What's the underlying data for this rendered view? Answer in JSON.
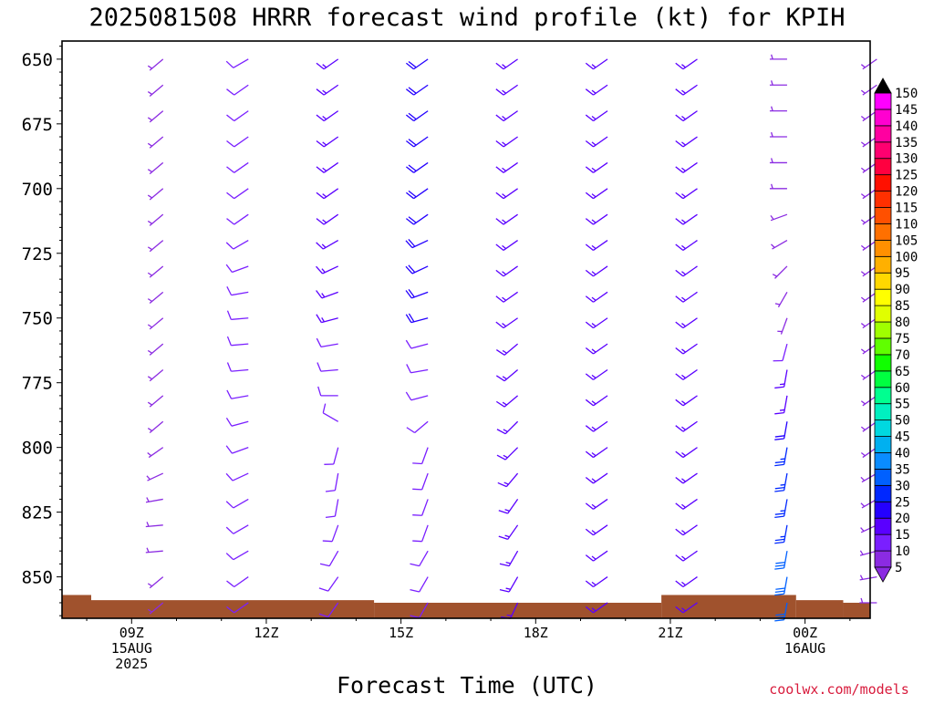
{
  "title": "2025081508 HRRR forecast wind profile (kt) for KPIH",
  "xlabel": "Forecast Time (UTC)",
  "credit": "coolwx.com/models",
  "chart_data": {
    "type": "wind-barb-profile",
    "title": "2025081508 HRRR forecast wind profile (kt) for KPIH",
    "xlabel": "Forecast Time (UTC)",
    "ylabel": "",
    "units": "kt",
    "x_range_hours_from_09Z": [
      -1.55,
      16.45
    ],
    "y_range_hpa": [
      643,
      866
    ],
    "x_ticks": [
      {
        "hour": 0,
        "label": "09Z",
        "sub": [
          "15AUG",
          "2025"
        ]
      },
      {
        "hour": 3,
        "label": "12Z",
        "sub": []
      },
      {
        "hour": 6,
        "label": "15Z",
        "sub": []
      },
      {
        "hour": 9,
        "label": "18Z",
        "sub": []
      },
      {
        "hour": 12,
        "label": "21Z",
        "sub": []
      },
      {
        "hour": 15,
        "label": "00Z",
        "sub": [
          "16AUG"
        ]
      }
    ],
    "y_ticks": [
      650,
      675,
      700,
      725,
      750,
      775,
      800,
      825,
      850
    ],
    "pressure_levels": [
      650,
      660,
      670,
      680,
      690,
      700,
      710,
      720,
      730,
      740,
      750,
      760,
      770,
      780,
      790,
      800,
      810,
      820,
      830,
      840,
      850,
      860
    ],
    "columns": [
      {
        "hour": 0.7,
        "dir": [
          230,
          230,
          230,
          230,
          230,
          230,
          230,
          230,
          230,
          230,
          230,
          230,
          230,
          230,
          230,
          235,
          245,
          260,
          265,
          265,
          230,
          230
        ],
        "spd": [
          8,
          8,
          8,
          8,
          8,
          8,
          8,
          8,
          8,
          8,
          8,
          8,
          8,
          8,
          8,
          8,
          8,
          8,
          8,
          8,
          8,
          8
        ]
      },
      {
        "hour": 2.6,
        "dir": [
          240,
          235,
          235,
          235,
          235,
          235,
          235,
          240,
          250,
          260,
          265,
          265,
          265,
          260,
          255,
          250,
          245,
          240,
          240,
          240,
          235,
          235
        ],
        "spd": [
          10,
          10,
          10,
          10,
          10,
          10,
          10,
          10,
          10,
          10,
          10,
          10,
          10,
          10,
          10,
          10,
          10,
          10,
          10,
          10,
          10,
          10
        ]
      },
      {
        "hour": 4.6,
        "dir": [
          235,
          235,
          235,
          235,
          235,
          235,
          235,
          240,
          245,
          250,
          255,
          260,
          265,
          270,
          300,
          195,
          190,
          190,
          200,
          210,
          215,
          215
        ],
        "spd": [
          15,
          15,
          15,
          15,
          15,
          15,
          15,
          15,
          15,
          15,
          15,
          12,
          12,
          12,
          12,
          12,
          12,
          12,
          12,
          12,
          12,
          12
        ]
      },
      {
        "hour": 6.6,
        "dir": [
          235,
          235,
          235,
          235,
          235,
          235,
          235,
          245,
          245,
          250,
          255,
          255,
          260,
          255,
          230,
          200,
          200,
          200,
          200,
          210,
          210,
          210
        ],
        "spd": [
          20,
          20,
          20,
          20,
          20,
          20,
          20,
          20,
          20,
          20,
          20,
          12,
          12,
          12,
          12,
          12,
          12,
          12,
          12,
          12,
          12,
          12
        ]
      },
      {
        "hour": 8.6,
        "dir": [
          235,
          235,
          235,
          235,
          235,
          235,
          235,
          235,
          235,
          235,
          235,
          230,
          230,
          230,
          225,
          225,
          220,
          215,
          215,
          210,
          210,
          205
        ],
        "spd": [
          18,
          18,
          18,
          18,
          18,
          18,
          18,
          18,
          18,
          18,
          18,
          15,
          15,
          15,
          15,
          15,
          15,
          15,
          15,
          15,
          15,
          15
        ]
      },
      {
        "hour": 10.6,
        "dir": [
          235,
          235,
          235,
          235,
          235,
          235,
          235,
          235,
          235,
          235,
          235,
          235,
          235,
          235,
          235,
          235,
          235,
          235,
          235,
          235,
          235,
          235
        ],
        "spd": [
          15,
          15,
          15,
          15,
          15,
          15,
          15,
          15,
          15,
          15,
          15,
          15,
          15,
          15,
          15,
          15,
          15,
          15,
          15,
          15,
          15,
          15
        ]
      },
      {
        "hour": 12.6,
        "dir": [
          235,
          235,
          235,
          235,
          235,
          235,
          235,
          235,
          235,
          235,
          235,
          235,
          235,
          235,
          235,
          235,
          235,
          235,
          235,
          235,
          235,
          235
        ],
        "spd": [
          15,
          15,
          15,
          15,
          15,
          15,
          15,
          15,
          15,
          15,
          15,
          15,
          15,
          15,
          15,
          15,
          15,
          15,
          15,
          15,
          15,
          15
        ]
      },
      {
        "hour": 14.6,
        "dir": [
          270,
          270,
          270,
          270,
          270,
          270,
          250,
          240,
          225,
          210,
          200,
          195,
          190,
          190,
          190,
          190,
          190,
          190,
          190,
          190,
          190,
          190
        ],
        "spd": [
          8,
          8,
          8,
          8,
          8,
          8,
          8,
          8,
          8,
          8,
          8,
          12,
          15,
          18,
          22,
          25,
          25,
          25,
          28,
          30,
          30,
          30
        ]
      },
      {
        "hour": 16.6,
        "dir": [
          235,
          235,
          235,
          235,
          235,
          235,
          235,
          235,
          235,
          235,
          235,
          235,
          235,
          235,
          235,
          235,
          240,
          240,
          245,
          255,
          260,
          270
        ],
        "spd": [
          8,
          8,
          8,
          8,
          8,
          8,
          8,
          8,
          8,
          8,
          8,
          8,
          8,
          8,
          8,
          8,
          8,
          8,
          8,
          8,
          8,
          8
        ]
      }
    ],
    "terrain": [
      {
        "h0": -1.55,
        "h1": -0.9,
        "p": 857
      },
      {
        "h0": -0.9,
        "h1": 5.4,
        "p": 859
      },
      {
        "h0": 5.4,
        "h1": 11.8,
        "p": 860
      },
      {
        "h0": 11.8,
        "h1": 14.8,
        "p": 857
      },
      {
        "h0": 14.8,
        "h1": 15.85,
        "p": 859
      },
      {
        "h0": 15.85,
        "h1": 16.45,
        "p": 860
      }
    ],
    "terrain_color": "#a0522d",
    "colorbar": {
      "labels": [
        5,
        10,
        15,
        20,
        25,
        30,
        35,
        40,
        45,
        50,
        55,
        60,
        65,
        70,
        75,
        80,
        85,
        90,
        95,
        100,
        105,
        110,
        115,
        120,
        125,
        130,
        135,
        140,
        145,
        150
      ],
      "colors": [
        "#8b2be2",
        "#7a1fff",
        "#5a00ff",
        "#2400ff",
        "#0028ff",
        "#0060ff",
        "#0a8cff",
        "#00b0f0",
        "#00d8e0",
        "#00f0c0",
        "#00ff90",
        "#00ff40",
        "#10ff00",
        "#60ff00",
        "#a0ff00",
        "#e0ff00",
        "#ffff00",
        "#ffd800",
        "#ffb000",
        "#ff9000",
        "#ff7000",
        "#ff5000",
        "#ff3000",
        "#ff1000",
        "#ff0040",
        "#ff0070",
        "#ff00a0",
        "#ff00d0",
        "#ff00ff"
      ],
      "top_color": "#000000"
    }
  }
}
